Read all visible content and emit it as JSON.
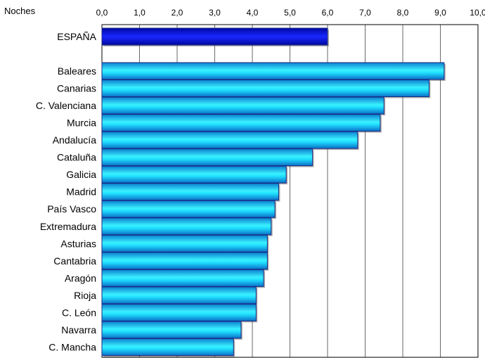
{
  "chart_data": {
    "type": "bar",
    "orientation": "horizontal",
    "unit_label": "Noches",
    "xlim": [
      0,
      10
    ],
    "x_ticks": [
      "0,0",
      "1,0",
      "2,0",
      "3,0",
      "4,0",
      "5,0",
      "6,0",
      "7,0",
      "8,0",
      "9,0",
      "10,0"
    ],
    "grid": "vertical",
    "categories": [
      "ESPAÑA",
      "Baleares",
      "Canarias",
      "C. Valenciana",
      "Murcia",
      "Andalucía",
      "Cataluña",
      "Galicia",
      "Madrid",
      "País Vasco",
      "Extremadura",
      "Asturias",
      "Cantabria",
      "Aragón",
      "Rioja",
      "C. León",
      "Navarra",
      "C. Mancha"
    ],
    "values": [
      6.0,
      9.1,
      8.7,
      7.5,
      7.4,
      6.8,
      5.6,
      4.9,
      4.7,
      4.6,
      4.5,
      4.4,
      4.4,
      4.3,
      4.1,
      4.1,
      3.7,
      3.5
    ],
    "colors": {
      "highlight": "#0a14c8",
      "bars": "#18d8ff",
      "bar_edge": "#1a2a80"
    }
  }
}
